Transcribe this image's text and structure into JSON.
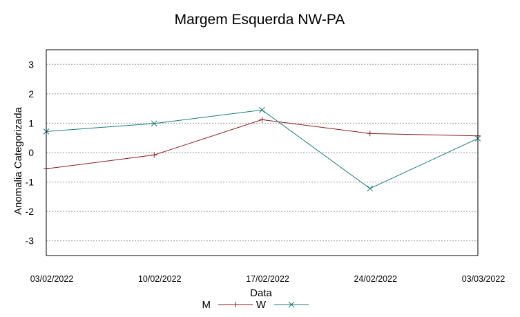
{
  "chart_data": {
    "type": "line",
    "title": "Margem Esquerda NW-PA",
    "xlabel": "Data",
    "ylabel": "Anomalia Categorizada",
    "categories": [
      "03/02/2022",
      "10/02/2022",
      "17/02/2022",
      "24/02/2022",
      "03/03/2022"
    ],
    "ylim": [
      -3.5,
      3.5
    ],
    "yticks": [
      -3,
      -2,
      -1,
      0,
      1,
      2,
      3
    ],
    "grid": true,
    "legend_position": "bottom-center",
    "series": [
      {
        "name": "M",
        "values": [
          -0.55,
          -0.08,
          1.12,
          0.65,
          0.57
        ],
        "color": "#8b1a1a",
        "marker": "plus"
      },
      {
        "name": "W",
        "values": [
          0.72,
          0.99,
          1.45,
          -1.22,
          0.48
        ],
        "color": "#1a7a7a",
        "marker": "x"
      }
    ]
  }
}
